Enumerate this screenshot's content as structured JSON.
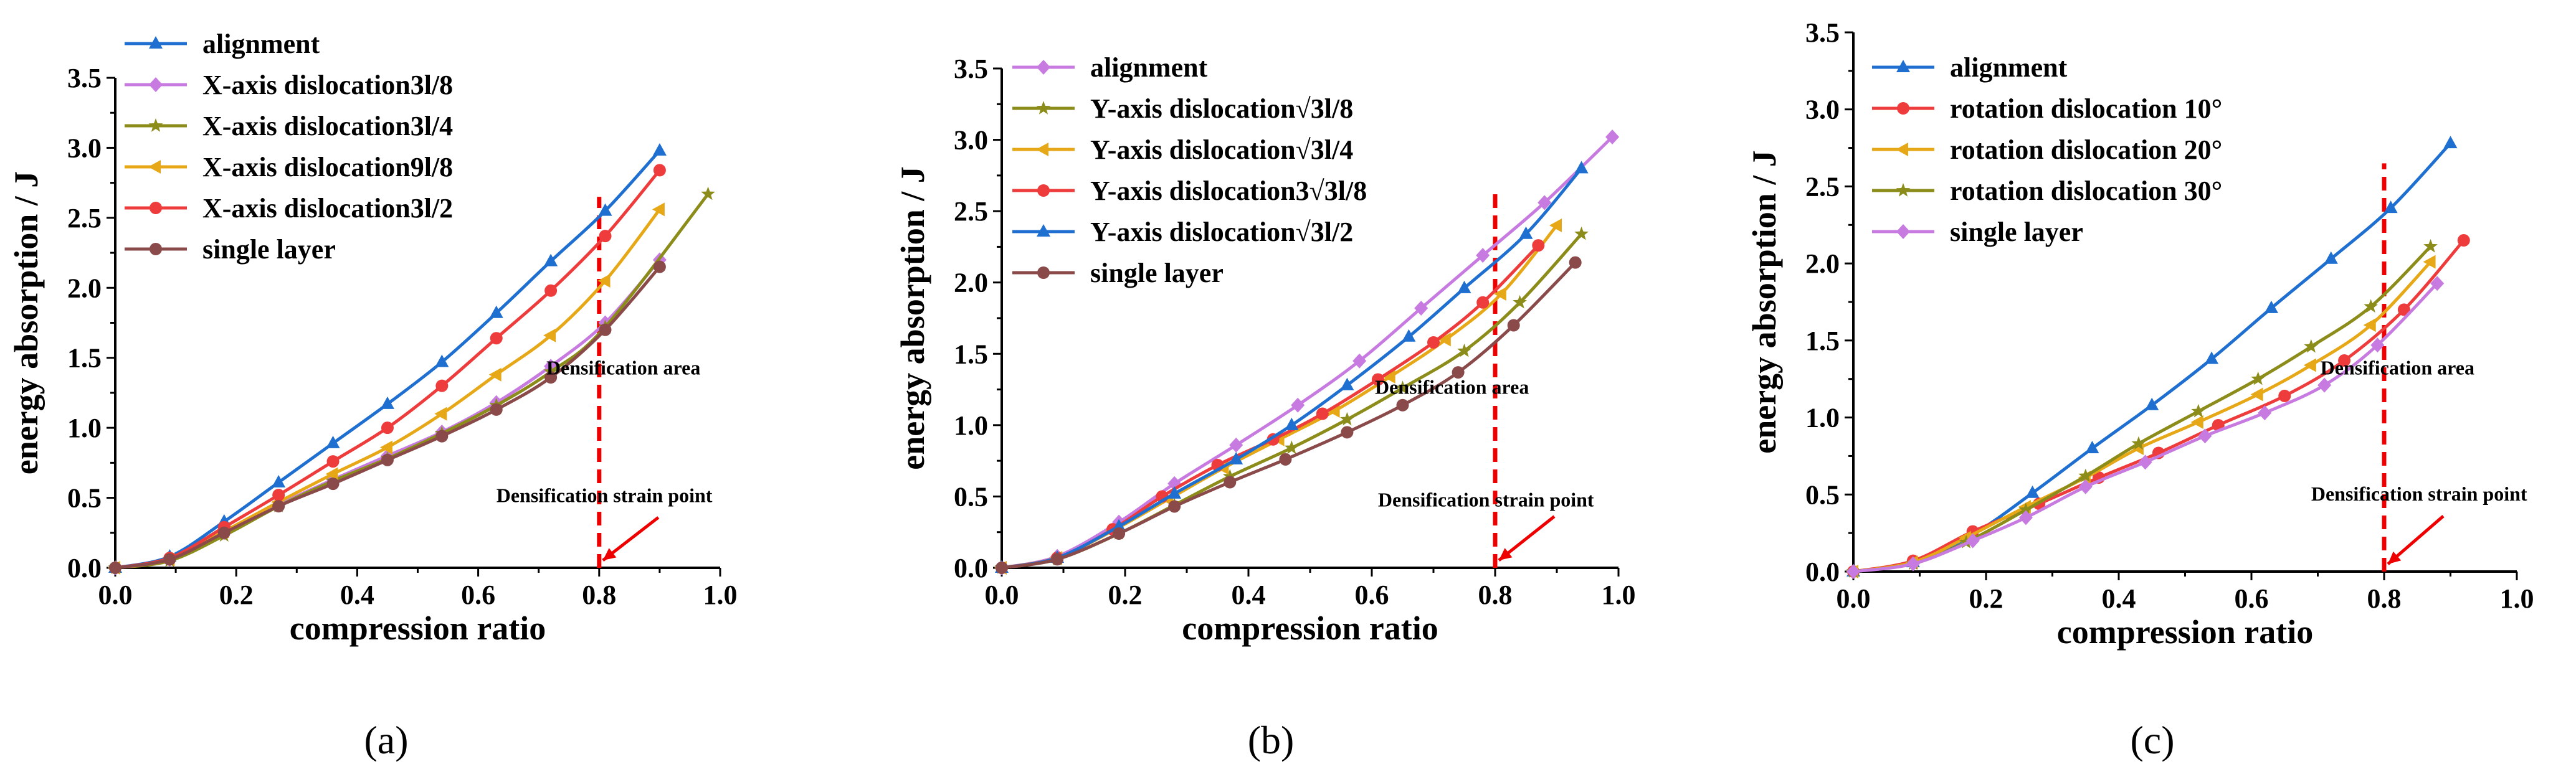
{
  "colors": {
    "blue": "#1f6fd0",
    "purple": "#c77be0",
    "olive": "#8c8c1a",
    "orange": "#e6a817",
    "red": "#ee3b3b",
    "brown": "#8b4a4a",
    "redDash": "#ee0000"
  },
  "chart_data": [
    {
      "type": "line",
      "panel_label": "(a)",
      "xlabel": "compression ratio",
      "ylabel": "energy absorption / J",
      "xlim": [
        0,
        1.0
      ],
      "ylim": [
        0,
        3.5
      ],
      "xticks": [
        "0.0",
        "0.2",
        "0.4",
        "0.6",
        "0.8",
        "1.0"
      ],
      "yticks": [
        "0.0",
        "0.5",
        "1.0",
        "1.5",
        "2.0",
        "2.5",
        "3.0",
        "3.5"
      ],
      "legend_position": "top-left",
      "densification_x": 0.8,
      "annotations": {
        "area": "Densification area",
        "point": "Densification strain point"
      },
      "series": [
        {
          "name": "alignment",
          "color": "blue",
          "marker": "triangle",
          "x": [
            0,
            0.09,
            0.18,
            0.27,
            0.36,
            0.45,
            0.54,
            0.63,
            0.72,
            0.81,
            0.9
          ],
          "y": [
            0,
            0.08,
            0.33,
            0.61,
            0.89,
            1.17,
            1.47,
            1.82,
            2.19,
            2.55,
            2.98
          ]
        },
        {
          "name": "X-axis dislocation3l/8",
          "color": "purple",
          "marker": "diamond",
          "x": [
            0,
            0.09,
            0.18,
            0.27,
            0.36,
            0.45,
            0.54,
            0.63,
            0.72,
            0.81,
            0.9
          ],
          "y": [
            0,
            0.06,
            0.25,
            0.45,
            0.63,
            0.8,
            0.97,
            1.18,
            1.44,
            1.75,
            2.2
          ]
        },
        {
          "name": "X-axis dislocation3l/4",
          "color": "olive",
          "marker": "star",
          "x": [
            0,
            0.09,
            0.18,
            0.27,
            0.36,
            0.45,
            0.54,
            0.63,
            0.72,
            0.81,
            0.98
          ],
          "y": [
            0,
            0.05,
            0.23,
            0.44,
            0.62,
            0.78,
            0.96,
            1.16,
            1.4,
            1.72,
            2.67
          ]
        },
        {
          "name": "X-axis dislocation9l/8",
          "color": "orange",
          "marker": "triangle-left",
          "x": [
            0,
            0.09,
            0.18,
            0.27,
            0.36,
            0.45,
            0.54,
            0.63,
            0.72,
            0.81,
            0.9
          ],
          "y": [
            0,
            0.06,
            0.26,
            0.47,
            0.67,
            0.86,
            1.1,
            1.38,
            1.66,
            2.05,
            2.56
          ]
        },
        {
          "name": "X-axis dislocation3l/2",
          "color": "red",
          "marker": "circle",
          "x": [
            0,
            0.09,
            0.18,
            0.27,
            0.36,
            0.45,
            0.54,
            0.63,
            0.72,
            0.81,
            0.9
          ],
          "y": [
            0,
            0.07,
            0.29,
            0.52,
            0.76,
            1.0,
            1.3,
            1.64,
            1.98,
            2.37,
            2.84
          ]
        },
        {
          "name": "single layer",
          "color": "brown",
          "marker": "circle",
          "x": [
            0,
            0.09,
            0.18,
            0.27,
            0.36,
            0.45,
            0.54,
            0.63,
            0.72,
            0.81,
            0.9
          ],
          "y": [
            0,
            0.06,
            0.25,
            0.44,
            0.6,
            0.77,
            0.94,
            1.13,
            1.36,
            1.7,
            2.15
          ]
        }
      ]
    },
    {
      "type": "line",
      "panel_label": "(b)",
      "xlabel": "compression ratio",
      "ylabel": "energy absorption / J",
      "xlim": [
        0,
        1.0
      ],
      "ylim": [
        0,
        3.5
      ],
      "xticks": [
        "0.0",
        "0.2",
        "0.4",
        "0.6",
        "0.8",
        "1.0"
      ],
      "yticks": [
        "0.0",
        "0.5",
        "1.0",
        "1.5",
        "2.0",
        "2.5",
        "3.0",
        "3.5"
      ],
      "legend_position": "top-left",
      "densification_x": 0.8,
      "annotations": {
        "area": "Densification area",
        "point": "Densification strain point"
      },
      "series": [
        {
          "name": "alignment",
          "color": "purple",
          "marker": "diamond",
          "x": [
            0,
            0.09,
            0.19,
            0.28,
            0.38,
            0.48,
            0.58,
            0.68,
            0.78,
            0.88,
            0.99
          ],
          "y": [
            0,
            0.08,
            0.32,
            0.59,
            0.86,
            1.14,
            1.45,
            1.82,
            2.19,
            2.56,
            3.02
          ]
        },
        {
          "name": "Y-axis dislocation√3l/8",
          "color": "olive",
          "marker": "star",
          "x": [
            0,
            0.09,
            0.19,
            0.28,
            0.37,
            0.47,
            0.56,
            0.65,
            0.75,
            0.84,
            0.94
          ],
          "y": [
            0,
            0.06,
            0.24,
            0.44,
            0.64,
            0.84,
            1.04,
            1.26,
            1.52,
            1.86,
            2.34
          ]
        },
        {
          "name": "Y-axis dislocation√3l/4",
          "color": "orange",
          "marker": "triangle-left",
          "x": [
            0,
            0.09,
            0.18,
            0.27,
            0.36,
            0.45,
            0.54,
            0.63,
            0.72,
            0.81,
            0.9
          ],
          "y": [
            0,
            0.07,
            0.26,
            0.48,
            0.7,
            0.9,
            1.1,
            1.34,
            1.6,
            1.92,
            2.4
          ]
        },
        {
          "name": "Y-axis dislocation3√3l/8",
          "color": "red",
          "marker": "circle",
          "x": [
            0,
            0.09,
            0.18,
            0.26,
            0.35,
            0.44,
            0.52,
            0.61,
            0.7,
            0.78,
            0.87
          ],
          "y": [
            0,
            0.07,
            0.27,
            0.5,
            0.72,
            0.9,
            1.08,
            1.32,
            1.58,
            1.86,
            2.26
          ]
        },
        {
          "name": "Y-axis dislocation√3l/2",
          "color": "blue",
          "marker": "triangle",
          "x": [
            0,
            0.09,
            0.19,
            0.28,
            0.38,
            0.47,
            0.56,
            0.66,
            0.75,
            0.85,
            0.94
          ],
          "y": [
            0,
            0.07,
            0.29,
            0.52,
            0.76,
            1.0,
            1.28,
            1.62,
            1.96,
            2.34,
            2.8
          ]
        },
        {
          "name": "single layer",
          "color": "brown",
          "marker": "circle",
          "x": [
            0,
            0.09,
            0.19,
            0.28,
            0.37,
            0.46,
            0.56,
            0.65,
            0.74,
            0.83,
            0.93
          ],
          "y": [
            0,
            0.06,
            0.24,
            0.43,
            0.6,
            0.76,
            0.95,
            1.14,
            1.37,
            1.7,
            2.14
          ]
        }
      ]
    },
    {
      "type": "line",
      "panel_label": "(c)",
      "xlabel": "compression ratio",
      "ylabel": "energy absorption / J",
      "xlim": [
        0,
        1.0
      ],
      "ylim": [
        0,
        3.5
      ],
      "xticks": [
        "0.0",
        "0.2",
        "0.4",
        "0.6",
        "0.8",
        "1.0"
      ],
      "yticks": [
        "0.0",
        "0.5",
        "1.0",
        "1.5",
        "2.0",
        "2.5",
        "3.0",
        "3.5"
      ],
      "legend_position": "top-left",
      "densification_x": 0.8,
      "annotations": {
        "area": "Densification area",
        "point": "Densification strain point"
      },
      "series": [
        {
          "name": "alignment",
          "color": "blue",
          "marker": "triangle",
          "x": [
            0,
            0.09,
            0.18,
            0.27,
            0.36,
            0.45,
            0.54,
            0.63,
            0.72,
            0.81,
            0.9
          ],
          "y": [
            0,
            0.06,
            0.24,
            0.51,
            0.8,
            1.08,
            1.38,
            1.71,
            2.03,
            2.36,
            2.78
          ]
        },
        {
          "name": "rotation dislocation 10°",
          "color": "red",
          "marker": "circle",
          "x": [
            0,
            0.09,
            0.18,
            0.28,
            0.37,
            0.46,
            0.55,
            0.65,
            0.74,
            0.83,
            0.92
          ],
          "y": [
            0,
            0.07,
            0.26,
            0.44,
            0.61,
            0.77,
            0.95,
            1.14,
            1.37,
            1.7,
            2.15
          ]
        },
        {
          "name": "rotation dislocation 20°",
          "color": "orange",
          "marker": "triangle-left",
          "x": [
            0,
            0.09,
            0.17,
            0.26,
            0.35,
            0.43,
            0.52,
            0.61,
            0.69,
            0.78,
            0.87
          ],
          "y": [
            0,
            0.06,
            0.22,
            0.42,
            0.61,
            0.8,
            0.97,
            1.15,
            1.34,
            1.6,
            2.01
          ]
        },
        {
          "name": "rotation dislocation 30°",
          "color": "olive",
          "marker": "star",
          "x": [
            0,
            0.09,
            0.17,
            0.26,
            0.35,
            0.43,
            0.52,
            0.61,
            0.69,
            0.78,
            0.87
          ],
          "y": [
            0,
            0.05,
            0.19,
            0.4,
            0.62,
            0.83,
            1.04,
            1.25,
            1.46,
            1.72,
            2.11
          ]
        },
        {
          "name": "single layer",
          "color": "purple",
          "marker": "diamond",
          "x": [
            0,
            0.09,
            0.18,
            0.26,
            0.35,
            0.44,
            0.53,
            0.62,
            0.71,
            0.79,
            0.88
          ],
          "y": [
            0,
            0.05,
            0.2,
            0.35,
            0.55,
            0.71,
            0.88,
            1.03,
            1.21,
            1.47,
            1.87
          ]
        }
      ]
    }
  ]
}
